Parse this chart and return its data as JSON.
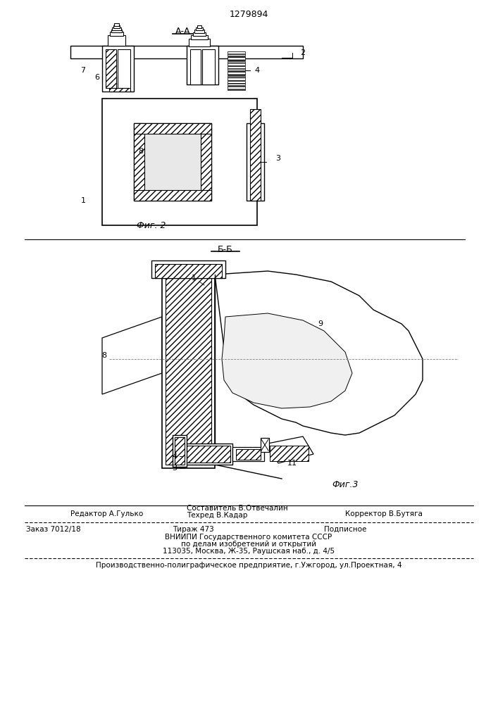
{
  "patent_number": "1279894",
  "fig2_label": "А-А",
  "fig3_label": "Б-Б",
  "fig2_caption": "Фиг. 2",
  "fig3_caption": "Фиг.3",
  "footer_line1_left": "Редактор А.Гулько",
  "footer_line1_center1": "Составитель В.Отвечалин",
  "footer_line1_center2": "Техред В.Кадар",
  "footer_line1_right": "Корректор В.Бутяга",
  "footer_line2_left": "Заказ 7012/18",
  "footer_line2_center": "Тираж 473",
  "footer_line2_right": "Подписное",
  "footer_line3": "ВНИИПИ Государственного комитета СССР",
  "footer_line4": "по делам изобретений и открытий",
  "footer_line5": "113035, Москва, Ж-35, Раушская наб., д. 4/5",
  "footer_line6": "Производственно-полиграфическое предприятие, г.Ужгород, ул.Проектная, 4",
  "bg_color": "#ffffff",
  "line_color": "#000000",
  "hatch_color": "#000000"
}
